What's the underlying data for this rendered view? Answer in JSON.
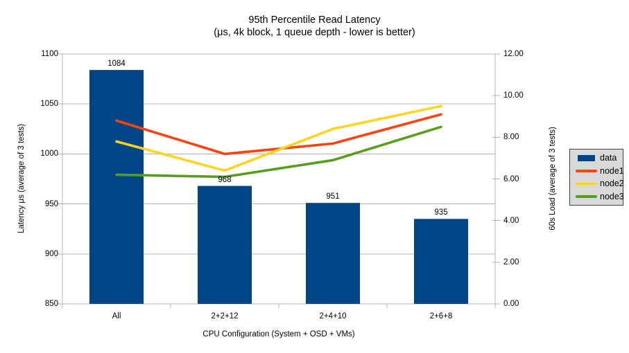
{
  "title": {
    "line1": "95th Percentile Read Latency",
    "line2": "(μs, 4k block, 1 queue depth - lower is better)"
  },
  "chart_data": {
    "type": "combo-bar-line",
    "title": "95th Percentile Read Latency",
    "subtitle": "(μs, 4k block, 1 queue depth - lower is better)",
    "categories": [
      "All",
      "2+2+12",
      "2+4+10",
      "2+6+8"
    ],
    "series": [
      {
        "name": "data",
        "type": "bar",
        "axis": "left",
        "color": "#004586",
        "values": [
          1084,
          968,
          951,
          935
        ],
        "data_labels": true
      },
      {
        "name": "node1",
        "type": "line",
        "axis": "right",
        "color": "#FF420E",
        "values": [
          8.8,
          7.2,
          7.7,
          9.1
        ]
      },
      {
        "name": "node2",
        "type": "line",
        "axis": "right",
        "color": "#FFD320",
        "values": [
          7.8,
          6.4,
          8.4,
          9.5
        ]
      },
      {
        "name": "node3",
        "type": "line",
        "axis": "right",
        "color": "#579D1C",
        "values": [
          6.2,
          6.1,
          6.9,
          8.5
        ]
      }
    ],
    "xlabel": "CPU Configuration (System + OSD + VMs)",
    "ylabel_left": "Latency μs (average of 3 tests)",
    "ylabel_right": "60s Load (average of 3 tests)",
    "ylim_left": [
      850,
      1100
    ],
    "ylim_right": [
      0,
      12
    ],
    "yticks_left": [
      850,
      900,
      950,
      1000,
      1050,
      1100
    ],
    "yticks_right": [
      "0.00",
      "2.00",
      "4.00",
      "6.00",
      "8.00",
      "10.00",
      "12.00"
    ],
    "grid": "horizontal-major",
    "legend_position": "right",
    "colors": {
      "gridline": "#b3b3b3",
      "axis": "#b3b3b3",
      "text": "#000000",
      "legend_bg": "#d9d9d9",
      "legend_border": "#404040"
    }
  }
}
